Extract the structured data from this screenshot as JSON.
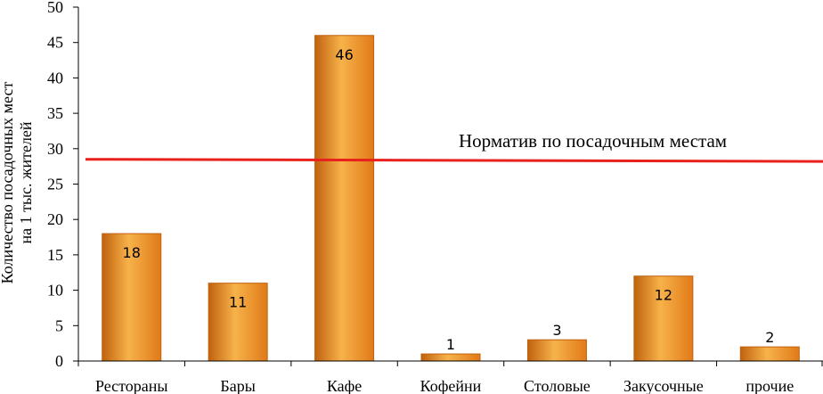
{
  "chart_data": {
    "type": "bar",
    "title": "",
    "xlabel": "",
    "ylabel_lines": [
      "Количество посадочных мест",
      "на 1 тыс. жителей"
    ],
    "categories": [
      "Рестораны",
      "Бары",
      "Кафе",
      "Кофейни",
      "Столовые",
      "Закусочные",
      "прочие"
    ],
    "values": [
      18,
      11,
      46,
      1,
      3,
      12,
      2
    ],
    "data_labels": [
      "18",
      "11",
      "46",
      "1",
      "3",
      "12",
      "2"
    ],
    "ylim": [
      0,
      50
    ],
    "yticks": [
      0,
      5,
      10,
      15,
      20,
      25,
      30,
      35,
      40,
      45,
      50
    ],
    "grid": false,
    "legend": "none",
    "reference_line": {
      "label": "Норматив по посадочным местам",
      "value_start": 28.5,
      "value_end": 28.2,
      "color": "#e8211c"
    },
    "colors": {
      "bar_light": "#f7b24a",
      "bar_dark": "#e07a18",
      "bar_edge": "#c0620f",
      "axis": "#000000"
    }
  }
}
